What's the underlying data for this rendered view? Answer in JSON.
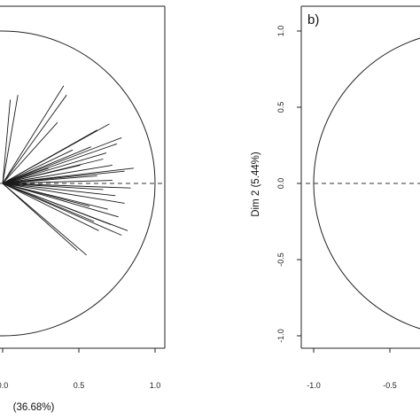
{
  "chart_data": [
    {
      "panel": "a",
      "type": "scatter",
      "subtype": "correlation-circle",
      "panel_label": "",
      "xlabel": "(36.68%)",
      "ylabel": "",
      "xlim": [
        -1.05,
        1.05
      ],
      "ylim": [
        -1.05,
        1.05
      ],
      "x_ticks": [
        "0.0",
        "0.5",
        "1.0"
      ],
      "y_ticks": [],
      "circle_radius": 1.0,
      "reference_line": "dashed horizontal at y = 0",
      "vectors": [
        {
          "x": 0.1,
          "y": 0.58
        },
        {
          "x": 0.05,
          "y": 0.55
        },
        {
          "x": 0.4,
          "y": 0.64
        },
        {
          "x": 0.42,
          "y": 0.58
        },
        {
          "x": 0.7,
          "y": 0.39
        },
        {
          "x": 0.62,
          "y": 0.35
        },
        {
          "x": 0.78,
          "y": 0.3
        },
        {
          "x": 0.75,
          "y": 0.26
        },
        {
          "x": 0.58,
          "y": 0.24
        },
        {
          "x": 0.68,
          "y": 0.2
        },
        {
          "x": 0.86,
          "y": 0.1
        },
        {
          "x": 0.8,
          "y": 0.08
        },
        {
          "x": 0.62,
          "y": 0.05
        },
        {
          "x": 0.72,
          "y": 0.02
        },
        {
          "x": 0.66,
          "y": -0.04
        },
        {
          "x": 0.74,
          "y": -0.08
        },
        {
          "x": 0.8,
          "y": -0.13
        },
        {
          "x": 0.69,
          "y": -0.17
        },
        {
          "x": 0.76,
          "y": -0.22
        },
        {
          "x": 0.71,
          "y": -0.27
        },
        {
          "x": 0.82,
          "y": -0.31
        },
        {
          "x": 0.78,
          "y": -0.34
        },
        {
          "x": 0.63,
          "y": -0.31
        },
        {
          "x": 0.55,
          "y": -0.47
        },
        {
          "x": 0.49,
          "y": -0.44
        },
        {
          "x": 0.57,
          "y": -0.15
        },
        {
          "x": 0.51,
          "y": 0.12
        },
        {
          "x": 0.46,
          "y": 0.22
        },
        {
          "x": 0.36,
          "y": 0.4
        },
        {
          "x": 0.3,
          "y": 0.1
        },
        {
          "x": 0.66,
          "y": 0.16
        },
        {
          "x": 0.84,
          "y": -0.03
        },
        {
          "x": 0.72,
          "y": 0.12
        },
        {
          "x": 0.6,
          "y": -0.25
        }
      ]
    },
    {
      "panel": "b",
      "type": "scatter",
      "subtype": "correlation-circle",
      "panel_label": "b)",
      "xlabel": "",
      "ylabel": "Dim 2 (5.44%)",
      "xlim": [
        -1.05,
        1.05
      ],
      "ylim": [
        -1.05,
        1.05
      ],
      "x_ticks": [
        "-1.0",
        "-0.5"
      ],
      "y_ticks": [
        "1.0",
        "0.5",
        "0.0",
        "-0.5",
        "-1.0"
      ],
      "circle_radius": 1.0,
      "reference_line": "dashed horizontal at y = 0"
    }
  ]
}
